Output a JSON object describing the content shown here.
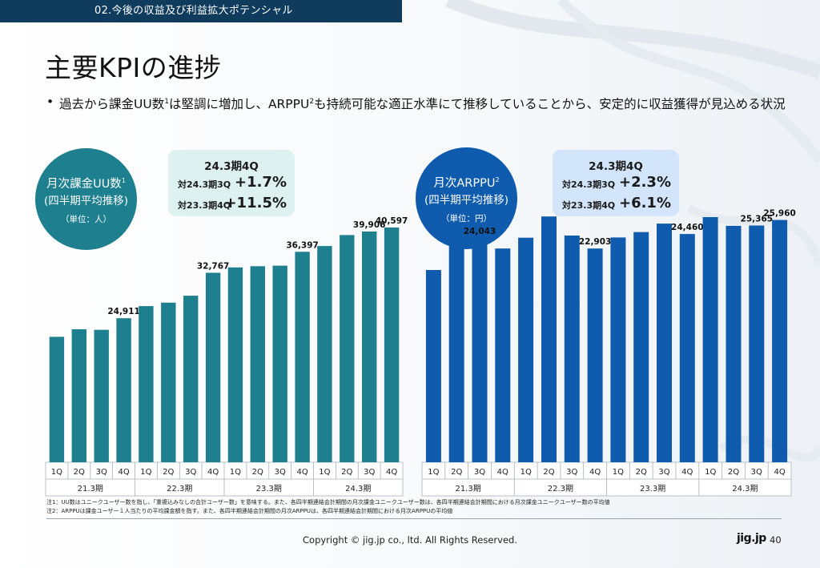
{
  "header": {
    "section": "02.今後の収益及び利益拡大ポテンシャル"
  },
  "page_title": "主要KPIの進捗",
  "bullet": {
    "text_1": "過去から課金UU数",
    "sup_1": "1",
    "text_2": "は堅調に増加し、ARPPU",
    "sup_2": "2",
    "text_3": "も持続可能な適正水準にて推移していることから、安定的に収益獲得が見込める状況"
  },
  "colors": {
    "teal": "#1e7f8e",
    "blue": "#0f5bad",
    "header": "#0f3c5c"
  },
  "left_panel": {
    "circle": {
      "line1": "月次課金UU数",
      "line1_sup": "1",
      "line2": "(四半期平均推移)",
      "unit": "（単位：人）"
    },
    "kpi": {
      "title": "24.3期4Q",
      "row1_label": "対24.3期3Q",
      "row1_value": "+1.7%",
      "row2_label": "対23.3期4Q",
      "row2_value": "+11.5%"
    }
  },
  "right_panel": {
    "circle": {
      "line1": "月次ARPPU",
      "line1_sup": "2",
      "line2": "(四半期平均推移)",
      "unit": "（単位：円）"
    },
    "kpi": {
      "title": "24.3期4Q",
      "row1_label": "対24.3期3Q",
      "row1_value": "+2.3%",
      "row2_label": "対23.3期4Q",
      "row2_value": "+6.1%"
    }
  },
  "chart_data": [
    {
      "type": "bar",
      "title": "月次課金UU数",
      "categories": [
        "21.3期 1Q",
        "21.3期 2Q",
        "21.3期 3Q",
        "21.3期 4Q",
        "22.3期 1Q",
        "22.3期 2Q",
        "22.3期 3Q",
        "22.3期 4Q",
        "23.3期 1Q",
        "23.3期 2Q",
        "23.3期 3Q",
        "23.3期 4Q",
        "24.3期 1Q",
        "24.3期 2Q",
        "24.3期 3Q",
        "24.3期 4Q"
      ],
      "quarters": [
        "1Q",
        "2Q",
        "3Q",
        "4Q",
        "1Q",
        "2Q",
        "3Q",
        "4Q",
        "1Q",
        "2Q",
        "3Q",
        "4Q",
        "1Q",
        "2Q",
        "3Q",
        "4Q"
      ],
      "periods": [
        "21.3期",
        "22.3期",
        "23.3期",
        "24.3期"
      ],
      "values": [
        21700,
        23000,
        22900,
        24911,
        27000,
        27600,
        28800,
        32767,
        33700,
        33900,
        34000,
        36397,
        37400,
        39300,
        39906,
        40597
      ],
      "data_labels": [
        null,
        null,
        null,
        "24,911",
        null,
        null,
        null,
        "32,767",
        null,
        null,
        null,
        "36,397",
        null,
        null,
        "39,906",
        "40,597"
      ],
      "ylim": [
        0,
        46000
      ]
    },
    {
      "type": "bar",
      "title": "月次ARPPU",
      "categories": [
        "21.3期 1Q",
        "21.3期 2Q",
        "21.3期 3Q",
        "21.3期 4Q",
        "22.3期 1Q",
        "22.3期 2Q",
        "22.3期 3Q",
        "22.3期 4Q",
        "23.3期 1Q",
        "23.3期 2Q",
        "23.3期 3Q",
        "23.3期 4Q",
        "24.3期 1Q",
        "24.3期 2Q",
        "24.3期 3Q",
        "24.3期 4Q"
      ],
      "quarters": [
        "1Q",
        "2Q",
        "3Q",
        "4Q",
        "1Q",
        "2Q",
        "3Q",
        "4Q",
        "1Q",
        "2Q",
        "3Q",
        "4Q",
        "1Q",
        "2Q",
        "3Q",
        "4Q"
      ],
      "periods": [
        "21.3期",
        "22.3期",
        "23.3期",
        "24.3期"
      ],
      "values": [
        20600,
        23200,
        24043,
        22900,
        24060,
        26340,
        24290,
        22903,
        24090,
        24660,
        25570,
        24460,
        26270,
        25330,
        25365,
        25960
      ],
      "data_labels": [
        null,
        null,
        "24,043",
        null,
        null,
        null,
        null,
        "22,903",
        null,
        null,
        null,
        "24,460",
        null,
        null,
        "25,365",
        "25,960"
      ],
      "ylim": [
        0,
        28500
      ]
    }
  ],
  "footnotes": {
    "note1": "注1：UU数はユニークユーザー数を指し、「重複込みなしの合計ユーザー数」を意味する。また、各四半期連結会計期間の月次課金ユニークユーザー数は、各四半期連結会計期間における月次課金ユニークユーザー数の平均値",
    "note2": "注2：ARPPUは課金ユーザー１人当たりの平均課金額を指す。また、各四半期連結会計期間の月次ARPPUは、各四半期連結会計期間における月次ARPPUの平均値"
  },
  "footer": {
    "copyright": "Copyright © jig.jp co., ltd. All Rights Reserved.",
    "logo": "jig.jp",
    "page": "40"
  }
}
